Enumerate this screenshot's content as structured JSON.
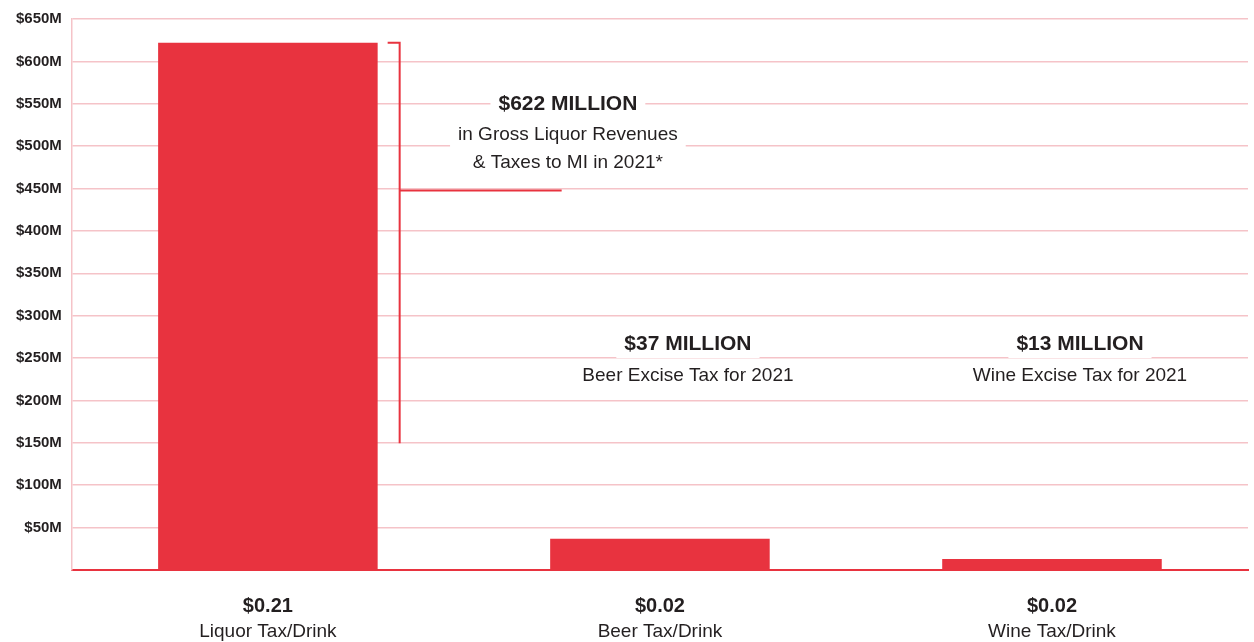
{
  "chart_data": {
    "type": "bar",
    "categories": [
      "Liquor Tax/Drink",
      "Beer Tax/Drink",
      "Wine Tax/Drink"
    ],
    "per_drink_tax_labels": [
      "$0.21",
      "$0.02",
      "$0.02"
    ],
    "values": [
      622,
      37,
      13
    ],
    "data_labels": true,
    "value_labels": [
      "$622 MILLION",
      "$37 MILLION",
      "$13 MILLION"
    ],
    "annotations": [
      [
        "in Gross Liquor Revenues",
        "& Taxes to MI in 2021*"
      ],
      [
        "Beer Excise Tax for 2021"
      ],
      [
        "Wine Excise Tax for 2021"
      ]
    ],
    "color": "#e8333f",
    "ylim": [
      0,
      650
    ],
    "yticks": [
      {
        "value": 50,
        "label": "$50M"
      },
      {
        "value": 100,
        "label": "$100M"
      },
      {
        "value": 150,
        "label": "$150M"
      },
      {
        "value": 200,
        "label": "$200M"
      },
      {
        "value": 250,
        "label": "$250M"
      },
      {
        "value": 300,
        "label": "$300M"
      },
      {
        "value": 350,
        "label": "$350M"
      },
      {
        "value": 400,
        "label": "$400M"
      },
      {
        "value": 450,
        "label": "$450M"
      },
      {
        "value": 500,
        "label": "$500M"
      },
      {
        "value": 550,
        "label": "$550M"
      },
      {
        "value": 600,
        "label": "$600M"
      },
      {
        "value": 650,
        "label": "$650M"
      }
    ],
    "grid": true
  }
}
